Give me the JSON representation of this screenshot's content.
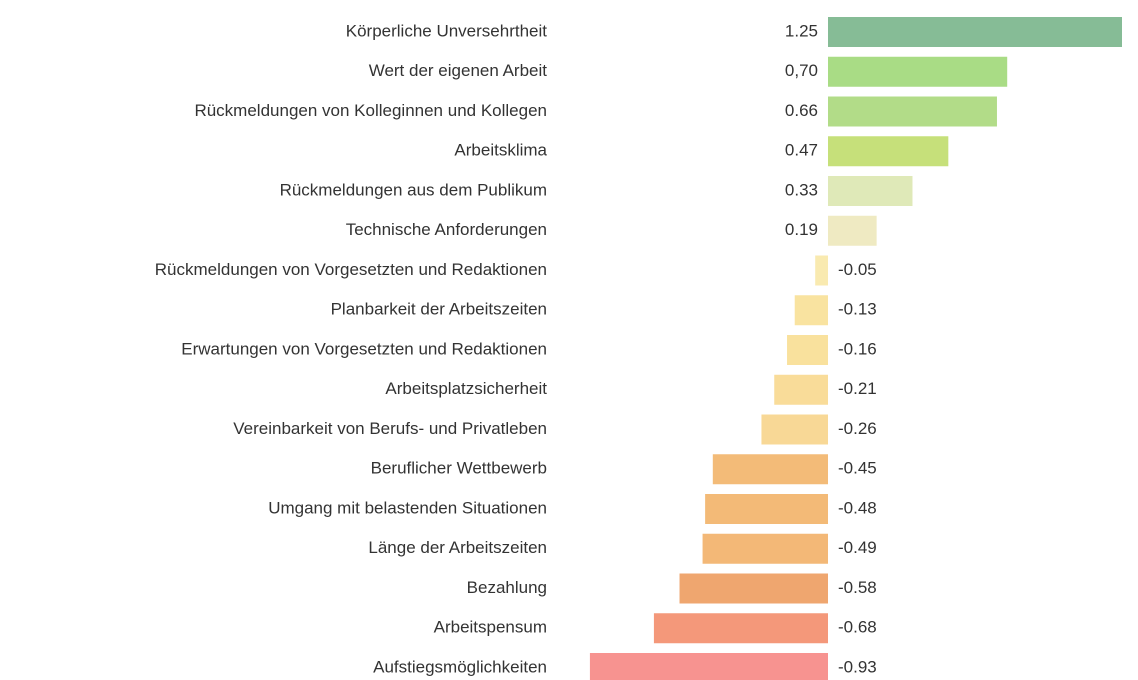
{
  "chart_data": {
    "type": "bar",
    "orientation": "horizontal",
    "categories": [
      "Körperliche Unversehrtheit",
      "Wert der eigenen Arbeit",
      "Rückmeldungen von Kolleginnen und Kollegen",
      "Arbeitsklima",
      "Rückmeldungen aus dem Publikum",
      "Technische Anforderungen",
      "Rückmeldungen von Vorgesetzten und Redaktionen",
      "Planbarkeit der Arbeitszeiten",
      "Erwartungen von Vorgesetzten und Redaktionen",
      "Arbeitsplatzsicherheit",
      "Vereinbarkeit von Berufs- und Privatleben",
      "Beruflicher Wettbewerb",
      "Umgang mit belastenden Situationen",
      "Länge der Arbeitszeiten",
      "Bezahlung",
      "Arbeitspensum",
      "Aufstiegsmöglichkeiten"
    ],
    "values": [
      1.25,
      0.7,
      0.66,
      0.47,
      0.33,
      0.19,
      -0.05,
      -0.13,
      -0.16,
      -0.21,
      -0.26,
      -0.45,
      -0.48,
      -0.49,
      -0.58,
      -0.68,
      -0.93
    ],
    "value_labels": [
      "1.25",
      "0,70",
      "0.66",
      "0.47",
      "0.33",
      "0.19",
      "-0.05",
      "-0.13",
      "-0.16",
      "-0.21",
      "-0.26",
      "-0.45",
      "-0.48",
      "-0.49",
      "-0.58",
      "-0.68",
      "-0.93"
    ],
    "colors": [
      "#86bc96",
      "#a9dc85",
      "#b2dc88",
      "#c6e07a",
      "#dfe9b8",
      "#efeac2",
      "#f9eab0",
      "#f9e3a0",
      "#f9e19d",
      "#f9dc99",
      "#f8d896",
      "#f3bb78",
      "#f3ba77",
      "#f3b877",
      "#efa66f",
      "#f4987a",
      "#f79390"
    ]
  }
}
